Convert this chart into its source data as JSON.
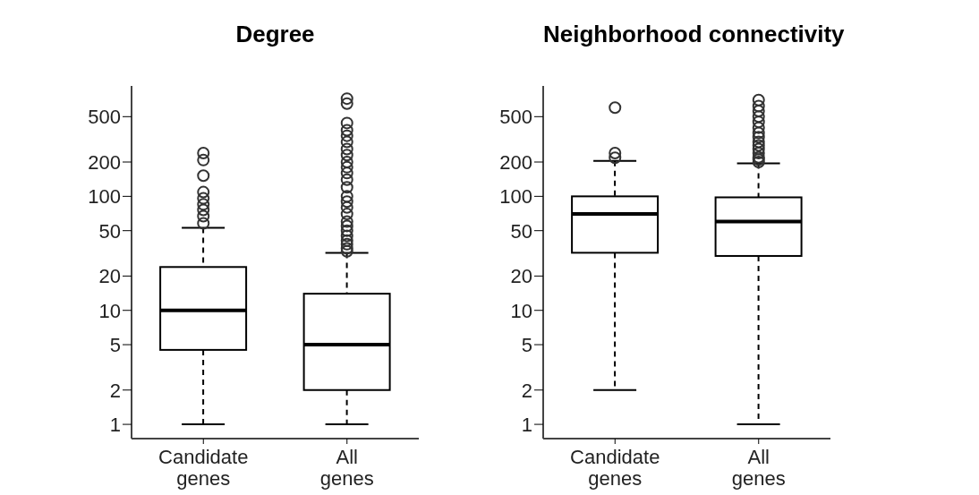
{
  "chart_data": [
    {
      "type": "box",
      "title": "Degree",
      "categories": [
        "Candidate genes",
        "All genes"
      ],
      "log": "y",
      "ylim": [
        0.75,
        930
      ],
      "yticks": [
        1,
        2,
        5,
        10,
        20,
        50,
        100,
        200,
        500
      ],
      "boxes": [
        {
          "low": 1,
          "q1": 4.5,
          "median": 10,
          "q3": 24,
          "high": 53,
          "outliers": [
            58,
            67,
            76,
            85,
            96,
            109,
            152,
            208,
            240
          ]
        },
        {
          "low": 1,
          "q1": 2,
          "median": 5,
          "q3": 14,
          "high": 32,
          "outliers": [
            33,
            35,
            38,
            41,
            45,
            50,
            55,
            60,
            70,
            80,
            90,
            100,
            120,
            140,
            160,
            180,
            200,
            230,
            260,
            300,
            340,
            380,
            440,
            650,
            720
          ]
        }
      ]
    },
    {
      "type": "box",
      "title": "Neighborhood connectivity",
      "categories": [
        "Candidate genes",
        "All genes"
      ],
      "log": "y",
      "ylim": [
        0.75,
        930
      ],
      "yticks": [
        1,
        2,
        5,
        10,
        20,
        50,
        100,
        200,
        500
      ],
      "boxes": [
        {
          "low": 2,
          "q1": 32,
          "median": 70,
          "q3": 100,
          "high": 205,
          "outliers": [
            218,
            240,
            600
          ]
        },
        {
          "low": 1,
          "q1": 30,
          "median": 60,
          "q3": 98,
          "high": 195,
          "outliers": [
            200,
            210,
            220,
            240,
            260,
            280,
            300,
            330,
            360,
            400,
            450,
            500,
            560,
            620,
            700
          ]
        }
      ]
    }
  ]
}
